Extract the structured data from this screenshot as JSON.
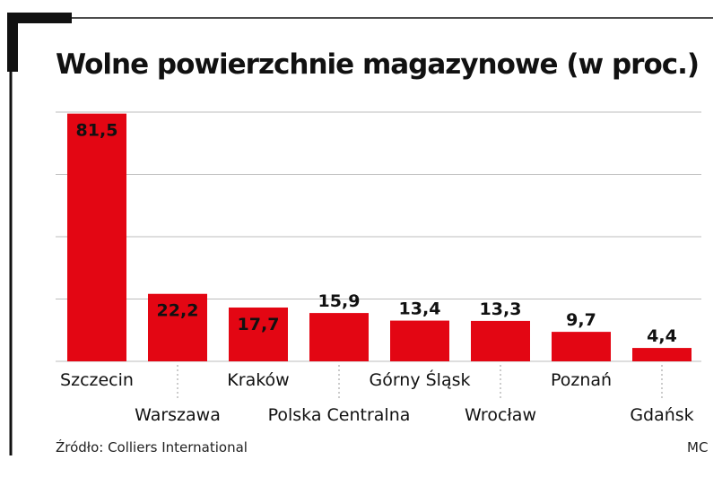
{
  "colors": {
    "bar": "#e30613",
    "frame": "#111111",
    "grid": "#bdbdbd",
    "text": "#111111"
  },
  "chart_data": {
    "type": "bar",
    "title": "Wolne powierzchnie magazynowe (w proc.)",
    "categories": [
      "Szczecin",
      "Warszawa",
      "Kraków",
      "Polska Centralna",
      "Górny Śląsk",
      "Wrocław",
      "Poznań",
      "Gdańsk"
    ],
    "values": [
      81.5,
      22.2,
      17.7,
      15.9,
      13.4,
      13.3,
      9.7,
      4.4
    ],
    "value_labels": [
      "81,5",
      "22,2",
      "17,7",
      "15,9",
      "13,4",
      "13,3",
      "9,7",
      "4,4"
    ],
    "xlabel": "",
    "ylabel": "",
    "ylim": [
      0,
      82
    ],
    "grid": true,
    "legend": "none"
  },
  "footer": {
    "source": "Źródło: Colliers International",
    "credit": "MC"
  }
}
